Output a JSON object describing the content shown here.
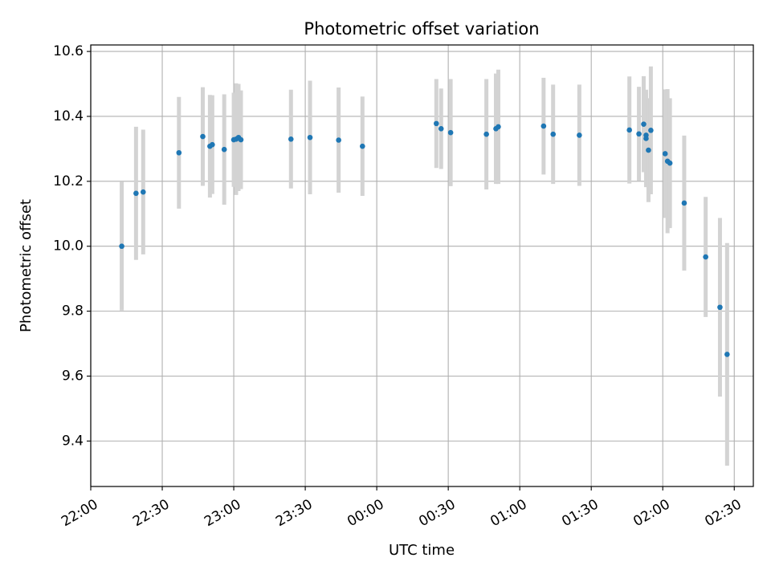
{
  "chart_data": {
    "type": "scatter",
    "title": "Photometric offset variation",
    "xlabel": "UTC time",
    "ylabel": "Photometric offset",
    "x_tick_labels": [
      "22:00",
      "22:30",
      "23:00",
      "23:30",
      "00:00",
      "00:30",
      "01:00",
      "01:30",
      "02:00",
      "02:30"
    ],
    "y_ticks": [
      9.4,
      9.6,
      9.8,
      10.0,
      10.2,
      10.4,
      10.6
    ],
    "y_tick_labels": [
      "9.4",
      "9.6",
      "9.8",
      "10.0",
      "10.2",
      "10.4",
      "10.6"
    ],
    "xlim": [
      "22:00",
      "02:38"
    ],
    "ylim": [
      9.26,
      10.62
    ],
    "grid": true,
    "point_color": "#1f77b4",
    "errorbar_color": "#d3d3d3",
    "series": [
      {
        "x": [
          "22:13",
          "22:19",
          "22:22",
          "22:37",
          "22:47",
          "22:50",
          "22:51",
          "22:56",
          "23:00",
          "23:01",
          "23:02",
          "23:03",
          "23:24",
          "23:32",
          "23:44",
          "23:54",
          "00:25",
          "00:27",
          "00:31",
          "00:46",
          "00:50",
          "00:51",
          "01:10",
          "01:14",
          "01:25",
          "01:46",
          "01:50",
          "01:52",
          "01:53",
          "01:53",
          "01:54",
          "01:55",
          "02:01",
          "02:02",
          "02:03",
          "02:09",
          "02:18",
          "02:24",
          "02:27"
        ],
        "y": [
          10.0,
          10.163,
          10.167,
          10.288,
          10.338,
          10.308,
          10.313,
          10.298,
          10.328,
          10.33,
          10.335,
          10.328,
          10.33,
          10.335,
          10.327,
          10.308,
          10.378,
          10.362,
          10.35,
          10.345,
          10.362,
          10.368,
          10.37,
          10.345,
          10.342,
          10.358,
          10.346,
          10.376,
          10.342,
          10.332,
          10.296,
          10.357,
          10.285,
          10.262,
          10.256,
          10.133,
          9.967,
          9.812,
          9.667
        ],
        "err": [
          0.198,
          0.205,
          0.192,
          0.172,
          0.152,
          0.158,
          0.152,
          0.17,
          0.145,
          0.172,
          0.165,
          0.152,
          0.152,
          0.175,
          0.162,
          0.153,
          0.137,
          0.124,
          0.165,
          0.17,
          0.17,
          0.176,
          0.149,
          0.153,
          0.156,
          0.165,
          0.145,
          0.148,
          0.13,
          0.15,
          0.16,
          0.197,
          0.198,
          0.222,
          0.2,
          0.208,
          0.185,
          0.275,
          0.343
        ]
      }
    ]
  }
}
